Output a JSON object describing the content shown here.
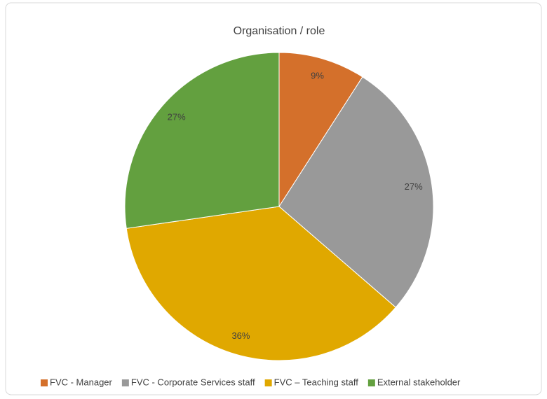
{
  "chart_data": {
    "type": "pie",
    "title": "Organisation  / role",
    "categories": [
      "FVC - Manager",
      "FVC - Corporate Services staff",
      "FVC – Teaching staff",
      "External stakeholder"
    ],
    "values": [
      9,
      27,
      36,
      27
    ],
    "value_labels": [
      "9%",
      "27%",
      "36%",
      "27%"
    ],
    "colors": [
      "#d4702b",
      "#999999",
      "#e0a800",
      "#63a03f"
    ],
    "legend": "bottom"
  }
}
